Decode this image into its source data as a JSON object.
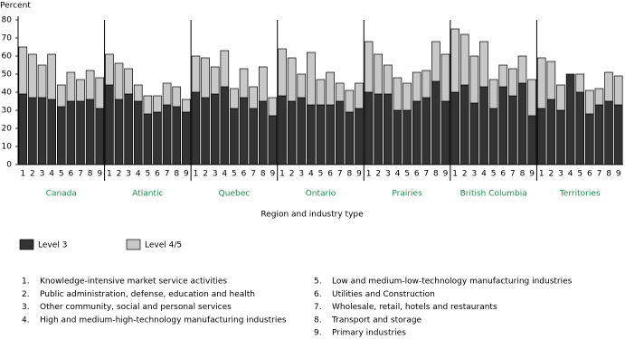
{
  "chart_data": {
    "type": "stacked-bar",
    "y_label": "Percent",
    "x_label": "Region and industry type",
    "ylim": [
      0,
      80
    ],
    "yticks": [
      0,
      10,
      20,
      30,
      40,
      50,
      60,
      70,
      80
    ],
    "groups": [
      "Canada",
      "Atlantic",
      "Quebec",
      "Ontario",
      "Prairies",
      "British Columbia",
      "Territories"
    ],
    "categories": [
      "1",
      "2",
      "3",
      "4",
      "5",
      "6",
      "7",
      "8",
      "9",
      "1",
      "2",
      "3",
      "4",
      "5",
      "6",
      "7",
      "8",
      "9",
      "1",
      "2",
      "3",
      "4",
      "5",
      "6",
      "7",
      "8",
      "9",
      "1",
      "2",
      "3",
      "4",
      "5",
      "6",
      "7",
      "8",
      "9",
      "1",
      "2",
      "3",
      "4",
      "5",
      "6",
      "7",
      "8",
      "9",
      "1",
      "2",
      "3",
      "4",
      "5",
      "6",
      "7",
      "8",
      "9",
      "1",
      "2",
      "3",
      "4",
      "5",
      "6",
      "7",
      "8",
      "9"
    ],
    "series": [
      {
        "name": "Level 3",
        "color": "#333333",
        "values": [
          39,
          37,
          37,
          36,
          32,
          35,
          35,
          36,
          31,
          44,
          36,
          39,
          35,
          28,
          29,
          33,
          32,
          29,
          40,
          37,
          39,
          43,
          31,
          37,
          31,
          35,
          27,
          38,
          35,
          37,
          33,
          33,
          33,
          35,
          29,
          31,
          40,
          39,
          39,
          30,
          30,
          35,
          37,
          46,
          35,
          40,
          44,
          34,
          43,
          31,
          43,
          38,
          45,
          27,
          31,
          36,
          30,
          50,
          40,
          28,
          33,
          35,
          33
        ]
      },
      {
        "name": "Level 4/5",
        "color": "#c8c8c8",
        "values": [
          26,
          24,
          18,
          25,
          12,
          16,
          12,
          16,
          17,
          17,
          20,
          14,
          9,
          10,
          9,
          12,
          11,
          7,
          20,
          22,
          15,
          20,
          11,
          16,
          12,
          19,
          10,
          26,
          24,
          13,
          29,
          14,
          18,
          10,
          12,
          14,
          28,
          22,
          16,
          18,
          15,
          16,
          15,
          22,
          26,
          35,
          28,
          26,
          25,
          16,
          12,
          15,
          15,
          20,
          28,
          21,
          14,
          0,
          10,
          13,
          9,
          16,
          16
        ]
      }
    ],
    "notes": [
      {
        "number": "1.",
        "text": "Knowledge-intensive market service activities"
      },
      {
        "number": "2.",
        "text": "Public administration, defense, education and health"
      },
      {
        "number": "3.",
        "text": "Other community, social and personal services"
      },
      {
        "number": "4.",
        "text": "High and medium-high-technology manufacturing industries"
      },
      {
        "number": "5.",
        "text": "Low and medium-low-technology manufacturing industries"
      },
      {
        "number": "6.",
        "text": "Utilities and Construction"
      },
      {
        "number": "7.",
        "text": "Wholesale, retail, hotels and restaurants"
      },
      {
        "number": "8.",
        "text": "Transport and storage"
      },
      {
        "number": "9.",
        "text": "Primary industries"
      }
    ]
  }
}
